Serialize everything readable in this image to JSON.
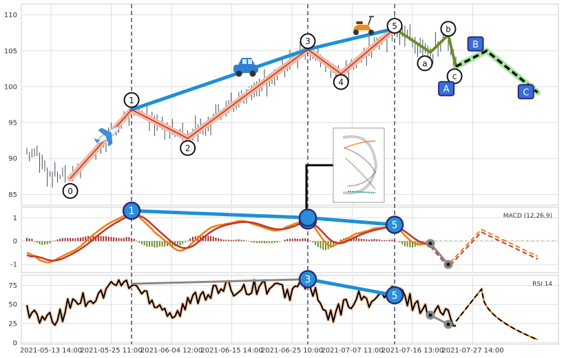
{
  "chart_data": [
    {
      "type": "line",
      "panel": "price",
      "title": "",
      "ylim": [
        83.5,
        111.5
      ],
      "yticks": [
        85,
        90,
        95,
        100,
        105,
        110
      ],
      "grid": true,
      "x_tick_labels": [
        "2021-05-13 14:00",
        "2021-05-25 11:00",
        "2021-06-04 12:00",
        "2021-06-15 14:00",
        "2021-06-25 10:00",
        "2021-07-07 11:00",
        "2021-07-16 13:00",
        "2021-07-27 14:00"
      ],
      "wave_points": [
        {
          "label": "0",
          "bar": 17,
          "value": 87.2
        },
        {
          "label": "1",
          "bar": 41,
          "value": 96.8
        },
        {
          "label": "2",
          "bar": 63,
          "value": 92.8
        },
        {
          "label": "3",
          "bar": 110,
          "value": 105.2
        },
        {
          "label": "4",
          "bar": 123,
          "value": 101.8
        },
        {
          "label": "5",
          "bar": 144,
          "value": 108.1
        }
      ],
      "abc_points": [
        {
          "label": "a",
          "bar": 158,
          "value": 104.8
        },
        {
          "label": "b",
          "bar": 165,
          "value": 107.2
        },
        {
          "label": "c",
          "bar": 168,
          "value": 102.8
        }
      ],
      "projection_points": [
        {
          "label": "A",
          "bar": 168,
          "value": 102.8
        },
        {
          "label": "B",
          "bar": 180,
          "value": 105.0
        },
        {
          "label": "C",
          "bar": 200,
          "value": 99.2
        }
      ],
      "trend_line": [
        {
          "bar": 41,
          "value": 96.8
        },
        {
          "bar": 110,
          "value": 105.2
        },
        {
          "bar": 144,
          "value": 108.1
        }
      ],
      "vertical_markers_bars": [
        41,
        110,
        144
      ],
      "icons": [
        "airplane-icon",
        "car-icon",
        "scooter-icon"
      ],
      "colors": {
        "wave": "#c0392b",
        "wave_band": "#f5b9a3",
        "trend": "#1e90d6",
        "abc": "#6b8e23",
        "projection": "#000000",
        "projection_band": "#a8e6a0",
        "marker": "#4a5a6a"
      }
    },
    {
      "type": "line",
      "panel": "macd",
      "label": "MACD (12,26,9)",
      "ylim": [
        -1.35,
        1.45
      ],
      "yticks": [
        -1,
        0,
        1
      ],
      "divergence_points": [
        {
          "label": "1",
          "bar": 41,
          "value": 1.3
        },
        {
          "label": "",
          "bar": 110,
          "value": 1.0
        },
        {
          "label": "5",
          "bar": 144,
          "value": 0.7
        }
      ],
      "projection_points": [
        {
          "bar": 158,
          "value": -0.1
        },
        {
          "bar": 165,
          "value": -1.0
        }
      ],
      "colors": {
        "macd": "#f07f13",
        "signal": "#c0392b",
        "hist_pos": "#a52a2a",
        "hist_neg": "#6b8e23",
        "divergence": "#1e90d6"
      }
    },
    {
      "type": "line",
      "panel": "rsi",
      "label": "RSI 14",
      "ylim": [
        -2,
        88
      ],
      "yticks": [
        0,
        25,
        50,
        75
      ],
      "divergence_points": [
        {
          "label": "3",
          "bar": 110,
          "value": 83
        },
        {
          "label": "5",
          "bar": 144,
          "value": 62
        }
      ],
      "gray_line": [
        {
          "bar": 41,
          "value": 77
        },
        {
          "bar": 110,
          "value": 83
        }
      ],
      "projection_points": [
        {
          "bar": 158,
          "value": 36
        },
        {
          "bar": 165,
          "value": 24
        }
      ],
      "colors": {
        "rsi": "#000000",
        "rsi_band": "#f5c7a8",
        "divergence": "#1e90d6"
      }
    }
  ]
}
